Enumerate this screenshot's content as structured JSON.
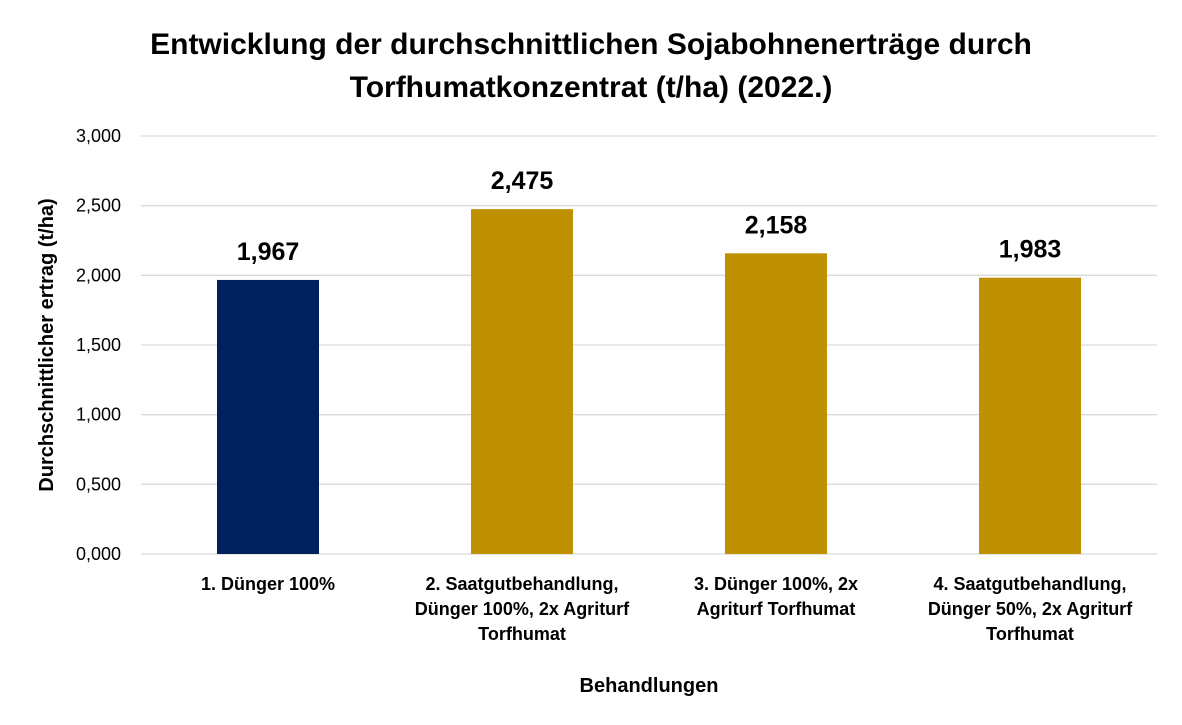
{
  "chart_data": {
    "type": "bar",
    "title_lines": [
      "Entwicklung der durchschnittlichen Sojabohnenerträge durch",
      "Torfhumatkonzentrat (t/ha) (2022.)"
    ],
    "xlabel": "Behandlungen",
    "ylabel": "Durchschnittlicher ertrag (t/ha)",
    "ylim": [
      0,
      3
    ],
    "y_step": 0.5,
    "y_tick_labels": [
      "0,000",
      "0,500",
      "1,000",
      "1,500",
      "2,000",
      "2,500",
      "3,000"
    ],
    "grid": true,
    "legend": "none",
    "categories": [
      [
        "1. Dünger 100%"
      ],
      [
        "2. Saatgutbehandlung,",
        "Dünger 100%, 2x Agriturf",
        "Torfhumat"
      ],
      [
        "3. Dünger 100%, 2x",
        "Agriturf Torfhumat"
      ],
      [
        "4. Saatgutbehandlung,",
        "Dünger 50%, 2x Agriturf",
        "Torfhumat"
      ]
    ],
    "values": [
      1.967,
      2.475,
      2.158,
      1.983
    ],
    "value_labels": [
      "1,967",
      "2,475",
      "2,158",
      "1,983"
    ],
    "colors": [
      "#00215b",
      "#bf9000",
      "#bf9000",
      "#bf9000"
    ]
  }
}
